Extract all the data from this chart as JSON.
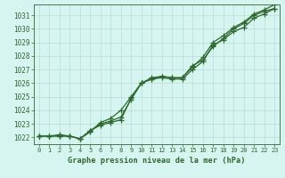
{
  "title": "Graphe pression niveau de la mer (hPa)",
  "background_color": "#d6f5f0",
  "grid_color": "#b8ddd4",
  "line_color": "#2d6a2d",
  "marker_color": "#2d6a2d",
  "xlim": [
    -0.5,
    23.5
  ],
  "ylim": [
    1021.5,
    1031.8
  ],
  "yticks": [
    1022,
    1023,
    1024,
    1025,
    1026,
    1027,
    1028,
    1029,
    1030,
    1031
  ],
  "xticks": [
    0,
    1,
    2,
    3,
    4,
    5,
    6,
    7,
    8,
    9,
    10,
    11,
    12,
    13,
    14,
    15,
    16,
    17,
    18,
    19,
    20,
    21,
    22,
    23
  ],
  "series": [
    [
      1022.1,
      1022.1,
      1022.1,
      1022.1,
      1021.9,
      1022.5,
      1022.9,
      1023.1,
      1023.3,
      1024.9,
      1026.0,
      1026.4,
      1026.5,
      1026.4,
      1026.4,
      1027.3,
      1027.7,
      1028.7,
      1029.3,
      1030.0,
      1030.4,
      1031.0,
      1031.3,
      1031.5
    ],
    [
      1022.1,
      1022.1,
      1022.1,
      1022.1,
      1021.9,
      1022.5,
      1023.0,
      1023.2,
      1023.5,
      1024.8,
      1026.0,
      1026.3,
      1026.5,
      1026.4,
      1026.4,
      1027.2,
      1027.9,
      1029.0,
      1029.5,
      1030.1,
      1030.5,
      1031.1,
      1031.4,
      1031.8
    ],
    [
      1022.1,
      1022.1,
      1022.2,
      1022.1,
      1021.9,
      1022.4,
      1023.1,
      1023.4,
      1024.0,
      1025.0,
      1026.0,
      1026.3,
      1026.4,
      1026.3,
      1026.3,
      1027.0,
      1027.6,
      1028.8,
      1029.2,
      1029.8,
      1030.1,
      1030.8,
      1031.1,
      1031.5
    ]
  ]
}
